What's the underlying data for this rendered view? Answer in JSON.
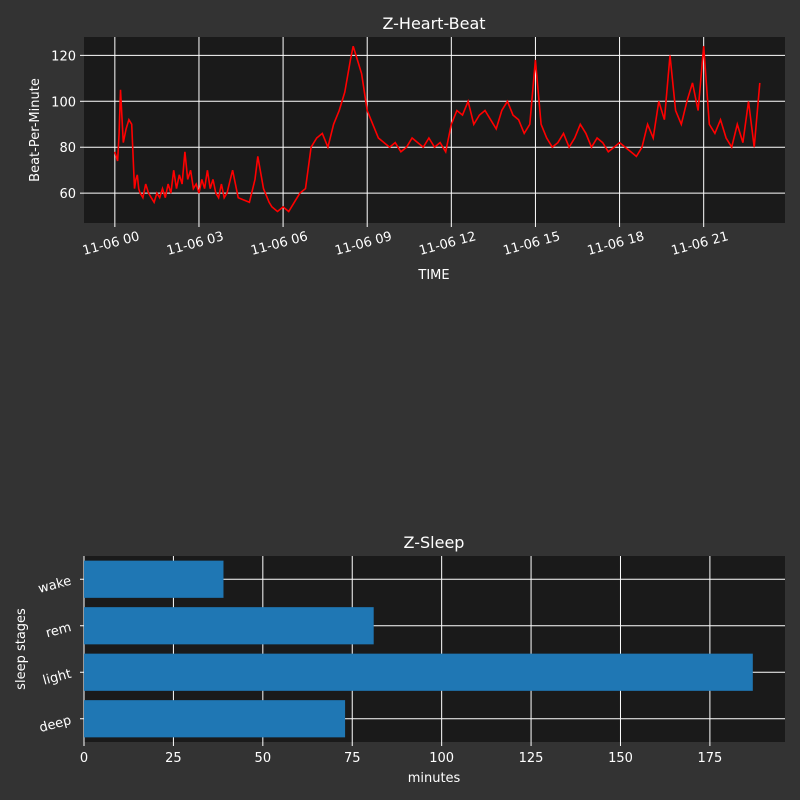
{
  "theme": {
    "figure_bg": "#333333",
    "axes_bg": "#1a1a1a",
    "grid_color": "#ffffff",
    "text_color": "#ffffff",
    "line_color": "#ff0000",
    "bar_color": "#1f77b4"
  },
  "chart_data": [
    {
      "type": "line",
      "title": "Z-Heart-Beat",
      "xlabel": "TIME",
      "ylabel": "Beat-Per-Minute",
      "x_tick_labels": [
        "11-06 00",
        "11-06 03",
        "11-06 06",
        "11-06 09",
        "11-06 12",
        "11-06 15",
        "11-06 18",
        "11-06 21"
      ],
      "x_tick_hours": [
        0,
        3,
        6,
        9,
        12,
        15,
        18,
        21
      ],
      "xlim_hours": [
        -1.1,
        23.9
      ],
      "y_ticks": [
        60,
        80,
        100,
        120
      ],
      "ylim": [
        47,
        128
      ],
      "grid": true,
      "series": [
        {
          "color": "#ff0000",
          "x_hours": [
            0.0,
            0.1,
            0.15,
            0.2,
            0.3,
            0.4,
            0.5,
            0.6,
            0.7,
            0.75,
            0.8,
            0.85,
            0.9,
            1.0,
            1.1,
            1.2,
            1.3,
            1.4,
            1.5,
            1.6,
            1.7,
            1.8,
            1.9,
            2.0,
            2.1,
            2.2,
            2.3,
            2.4,
            2.5,
            2.6,
            2.7,
            2.8,
            2.9,
            3.0,
            3.1,
            3.2,
            3.3,
            3.4,
            3.5,
            3.6,
            3.7,
            3.8,
            3.9,
            4.0,
            4.2,
            4.4,
            4.6,
            4.8,
            5.0,
            5.1,
            5.3,
            5.5,
            5.6,
            5.8,
            6.0,
            6.2,
            6.4,
            6.6,
            6.8,
            7.0,
            7.2,
            7.4,
            7.6,
            7.8,
            8.0,
            8.2,
            8.4,
            8.5,
            8.6,
            8.8,
            9.0,
            9.2,
            9.4,
            9.6,
            9.8,
            10.0,
            10.2,
            10.4,
            10.6,
            10.8,
            11.0,
            11.2,
            11.4,
            11.6,
            11.8,
            12.0,
            12.2,
            12.4,
            12.6,
            12.8,
            13.0,
            13.2,
            13.4,
            13.6,
            13.8,
            14.0,
            14.2,
            14.4,
            14.6,
            14.8,
            15.0,
            15.2,
            15.4,
            15.6,
            15.8,
            16.0,
            16.2,
            16.4,
            16.6,
            16.8,
            17.0,
            17.2,
            17.4,
            17.6,
            17.8,
            18.0,
            18.2,
            18.4,
            18.6,
            18.8,
            19.0,
            19.2,
            19.4,
            19.6,
            19.8,
            20.0,
            20.2,
            20.4,
            20.6,
            20.8,
            21.0,
            21.2,
            21.4,
            21.6,
            21.8,
            22.0,
            22.2,
            22.4,
            22.6,
            22.8,
            23.0
          ],
          "y": [
            78,
            74,
            86,
            105,
            82,
            88,
            92,
            90,
            62,
            66,
            68,
            62,
            60,
            58,
            64,
            60,
            58,
            56,
            60,
            58,
            62,
            58,
            64,
            60,
            70,
            62,
            68,
            64,
            78,
            66,
            70,
            62,
            64,
            60,
            66,
            62,
            70,
            62,
            66,
            60,
            58,
            64,
            58,
            60,
            70,
            58,
            57,
            56,
            66,
            76,
            62,
            56,
            54,
            52,
            54,
            52,
            56,
            60,
            62,
            80,
            84,
            86,
            80,
            90,
            96,
            104,
            118,
            124,
            120,
            112,
            96,
            90,
            84,
            82,
            80,
            82,
            78,
            80,
            84,
            82,
            80,
            84,
            80,
            82,
            78,
            90,
            96,
            94,
            100,
            90,
            94,
            96,
            92,
            88,
            96,
            100,
            94,
            92,
            86,
            90,
            118,
            90,
            84,
            80,
            82,
            86,
            80,
            84,
            90,
            86,
            80,
            84,
            82,
            78,
            80,
            82,
            80,
            78,
            76,
            80,
            90,
            84,
            100,
            92,
            120,
            96,
            90,
            100,
            108,
            96,
            124,
            90,
            86,
            92,
            84,
            80,
            90,
            82,
            100,
            80,
            108
          ]
        }
      ]
    },
    {
      "type": "bar",
      "orientation": "horizontal",
      "title": "Z-Sleep",
      "xlabel": "minutes",
      "ylabel": "sleep stages",
      "categories": [
        "deep",
        "light",
        "rem",
        "wake"
      ],
      "values": [
        73,
        187,
        81,
        39
      ],
      "x_ticks": [
        0,
        25,
        50,
        75,
        100,
        125,
        150,
        175
      ],
      "xlim": [
        0,
        196
      ],
      "grid": true
    }
  ]
}
